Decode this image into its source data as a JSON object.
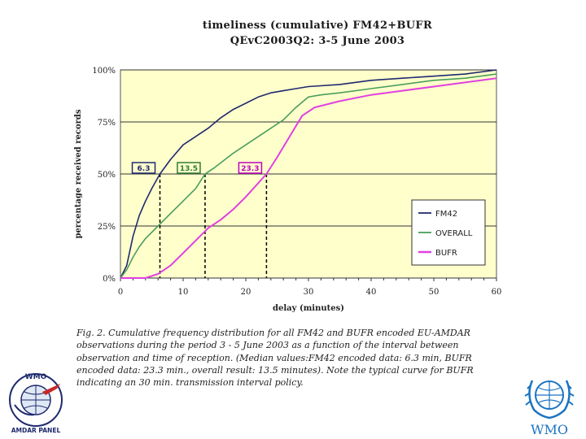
{
  "chart_data": {
    "type": "line",
    "title": "timeliness (cumulative) FM42+BUFR",
    "subtitle": "QEvC2003Q2: 3-5 June 2003",
    "xlabel": "delay (minutes)",
    "ylabel": "percentage received records",
    "xlim": [
      0,
      60
    ],
    "ylim": [
      0,
      100
    ],
    "x_ticks": [
      "0",
      "10",
      "20",
      "30",
      "40",
      "50",
      "60"
    ],
    "y_ticks": [
      "0%",
      "25%",
      "50%",
      "75%",
      "100%"
    ],
    "grid": "horizontal",
    "legend": "bottom-right",
    "plot_background": "#ffffcc",
    "series": [
      {
        "name": "FM42",
        "color": "#1f2a6e",
        "x": [
          0,
          1,
          2,
          3,
          4,
          5,
          6.3,
          8,
          10,
          12,
          14,
          16,
          18,
          20,
          22,
          24,
          26,
          28,
          30,
          35,
          40,
          45,
          50,
          55,
          60
        ],
        "y": [
          0,
          6,
          20,
          30,
          37,
          43,
          50,
          57,
          64,
          68,
          72,
          77,
          81,
          84,
          87,
          89,
          90,
          91,
          92,
          93,
          95,
          96,
          97,
          98,
          100
        ]
      },
      {
        "name": "OVERALL",
        "color": "#4a9e5c",
        "x": [
          0,
          1,
          2,
          3,
          4,
          6,
          8,
          10,
          12,
          13.5,
          15,
          18,
          20,
          22,
          24,
          26,
          28,
          30,
          32,
          35,
          40,
          45,
          50,
          55,
          60
        ],
        "y": [
          0,
          4,
          10,
          15,
          19,
          25,
          31,
          37,
          43,
          50,
          53,
          60,
          64,
          68,
          72,
          76,
          82,
          87,
          88,
          89,
          91,
          93,
          95,
          96,
          98
        ]
      },
      {
        "name": "BUFR",
        "color": "#e040e0",
        "x": [
          0,
          4,
          6,
          8,
          10,
          12,
          14,
          16,
          18,
          20,
          23.3,
          25,
          27,
          29,
          31,
          35,
          40,
          45,
          50,
          55,
          60
        ],
        "y": [
          0,
          0,
          2,
          6,
          12,
          18,
          24,
          28,
          33,
          39,
          50,
          58,
          68,
          78,
          82,
          85,
          88,
          90,
          92,
          94,
          96
        ]
      }
    ],
    "medians": [
      {
        "label": "6.3",
        "x": 6.3,
        "y": 50,
        "color": "#1f2a6e"
      },
      {
        "label": "13.5",
        "x": 13.5,
        "y": 50,
        "color": "#2e7d32"
      },
      {
        "label": "23.3",
        "x": 23.3,
        "y": 50,
        "color": "#c000c0"
      }
    ]
  },
  "caption": {
    "lead": "Fig. 2. Cumulative frequency distribution for all FM42 and BUFR encoded EU-AMDAR observations during the period 3 - 5 June 2003 as a function of the interval between observation and time of reception. (Median values:FM42 encoded data: 6.3 min, BUFR encoded data: 23.3 min., overall result: 13.5 minutes). Note the typical curve for BUFR indicating an 30 min. transmission interval policy."
  },
  "logos": {
    "amdar_text_top": "WMO",
    "amdar_text_bottom": "AMDAR PANEL",
    "wmo_text": "WMO"
  }
}
